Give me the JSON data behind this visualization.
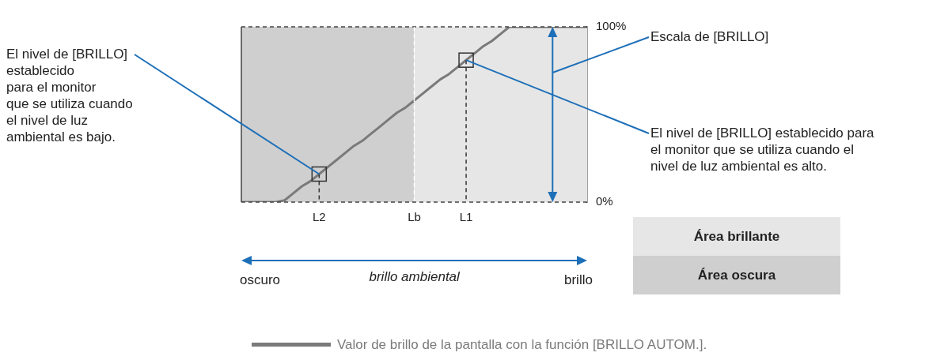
{
  "chart_data": {
    "type": "line",
    "categories": [
      null,
      null,
      null,
      null,
      null,
      null,
      null,
      null,
      null,
      "L2",
      null,
      null,
      null,
      null,
      null,
      null,
      null,
      null,
      null,
      null,
      "Lb",
      null,
      null,
      null,
      null,
      null,
      "L1",
      null,
      null,
      null,
      null,
      null,
      null,
      null,
      null,
      null,
      null,
      null,
      null,
      null,
      null
    ],
    "series": [
      {
        "name": "Área oscura",
        "type": "area",
        "color": "#cfcfcf",
        "values": [
          100,
          100,
          100,
          100,
          100,
          100,
          100,
          100,
          100,
          100,
          100,
          100,
          100,
          100,
          100,
          100,
          100,
          100,
          100,
          100,
          100,
          null,
          null,
          null,
          null,
          null,
          null,
          null,
          null,
          null,
          null,
          null,
          null,
          null,
          null,
          null,
          null,
          null,
          null,
          null,
          null
        ]
      },
      {
        "name": "Área brillante",
        "type": "area",
        "color": "#e6e6e6",
        "values": [
          null,
          null,
          null,
          null,
          null,
          null,
          null,
          null,
          null,
          null,
          null,
          null,
          null,
          null,
          null,
          null,
          null,
          null,
          null,
          null,
          100,
          100,
          100,
          100,
          100,
          100,
          100,
          100,
          100,
          100,
          100,
          100,
          100,
          100,
          100,
          100,
          100,
          100,
          100,
          100,
          100
        ]
      },
      {
        "name": "Valor de brillo de la pantalla con la función [BRILLO AUTOM.].",
        "color": "#7a7a7a",
        "values": [
          0,
          0,
          0,
          0,
          0,
          1,
          5,
          9,
          12,
          16,
          20,
          24,
          28,
          32,
          35,
          39,
          43,
          47,
          51,
          54,
          58,
          62,
          66,
          70,
          73,
          77,
          81,
          85,
          89,
          92,
          96,
          100,
          100,
          100,
          100,
          100,
          100,
          100,
          100,
          100,
          100
        ]
      }
    ],
    "ylim": [
      0,
      100
    ],
    "yticks": [
      {
        "value": 0,
        "label": "0%"
      },
      {
        "value": 100,
        "label": "100%"
      }
    ],
    "xlabel": "brillo ambiental",
    "grid": false,
    "legend": "bottom",
    "marker": "none",
    "ref_lines": [
      {
        "axis": "y",
        "value": 0,
        "line_style": "dashed",
        "color": "#444444"
      },
      {
        "axis": "y",
        "value": 100,
        "line_style": "dashed",
        "color": "#444444"
      },
      {
        "axis": "x",
        "value": "Lb",
        "line_style": "dashed",
        "color": "#ffffff"
      },
      {
        "axis": "x",
        "value": "L2",
        "line_style": "dashed"
      },
      {
        "axis": "x",
        "value": "L1",
        "line_style": "dashed"
      }
    ],
    "annotations": [
      {
        "text": "El nivel de [BRILLO]\nestablecido\npara el monitor\nque se utiliza cuando\nel nivel de luz\nambiental es bajo.",
        "x": "L2",
        "y": 16
      },
      "Escala de [BRILLO]",
      {
        "text": "El nivel de [BRILLO] establecido para\nel monitor que se utiliza cuando el\nnivel de luz ambiental es alto.",
        "x": "L1",
        "y": 81
      },
      "oscuro",
      "brillo"
    ]
  }
}
